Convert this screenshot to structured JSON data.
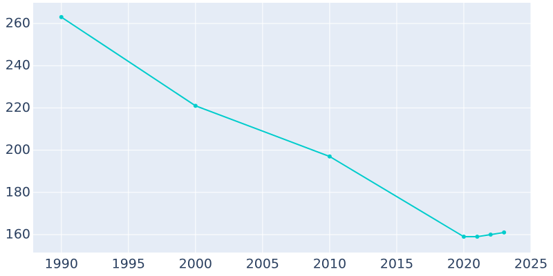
{
  "chart_data": {
    "type": "line",
    "x": [
      1990,
      2000,
      2010,
      2020,
      2021,
      2022,
      2023
    ],
    "series": [
      {
        "color": "#00cccc",
        "values": [
          263,
          221,
          197,
          159,
          159,
          160,
          161
        ]
      }
    ],
    "xlim": [
      1987.9,
      2025
    ],
    "xticks": [
      1990,
      1995,
      2000,
      2005,
      2010,
      2015,
      2020,
      2025
    ],
    "ylim": [
      151.5,
      269.8
    ],
    "yticks": [
      160,
      180,
      200,
      220,
      240,
      260
    ],
    "grid": true,
    "background": "#e5ecf6"
  }
}
